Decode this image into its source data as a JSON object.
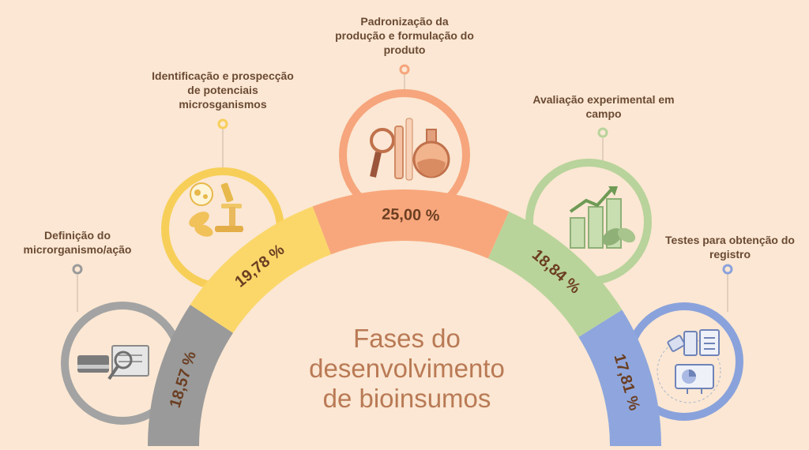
{
  "title_lines": [
    "Fases do",
    "desenvolvimento",
    "de bioinsumos"
  ],
  "phases": [
    {
      "key": "definicao",
      "label_lines": [
        "Definição do",
        "microrganismo/ação"
      ],
      "percent": 18.57,
      "percent_label": "18,57 %",
      "color": "#9a9a9a",
      "circle_color": "#a3a3a3",
      "icon": "book-magnifier-icon"
    },
    {
      "key": "identificacao",
      "label_lines": [
        "Identificação e prospecção",
        "de potenciais",
        "microsganismos"
      ],
      "percent": 19.78,
      "percent_label": "19,78 %",
      "color": "#fbd76a",
      "circle_color": "#f7cf58",
      "icon": "microscope-icon"
    },
    {
      "key": "padronizacao",
      "label_lines": [
        "Padronização da",
        "produção e formulação do",
        "produto"
      ],
      "percent": 25.0,
      "percent_label": "25,00 %",
      "color": "#f8a77c",
      "circle_color": "#f6a57c",
      "icon": "lab-tools-icon"
    },
    {
      "key": "avaliacao",
      "label_lines": [
        "Avaliação experimental em",
        "campo"
      ],
      "percent": 18.84,
      "percent_label": "18,84 %",
      "color": "#b9d49a",
      "circle_color": "#b8d39b",
      "icon": "growth-chart-icon"
    },
    {
      "key": "testes",
      "label_lines": [
        "Testes para obtenção do",
        "registro"
      ],
      "percent": 17.81,
      "percent_label": "17,81 %",
      "color": "#8ea6dd",
      "circle_color": "#8aa2dc",
      "icon": "registry-documents-icon"
    }
  ],
  "colors": {
    "background": "#fbe7d3",
    "text": "#6b4a33",
    "title": "#b97a55"
  }
}
